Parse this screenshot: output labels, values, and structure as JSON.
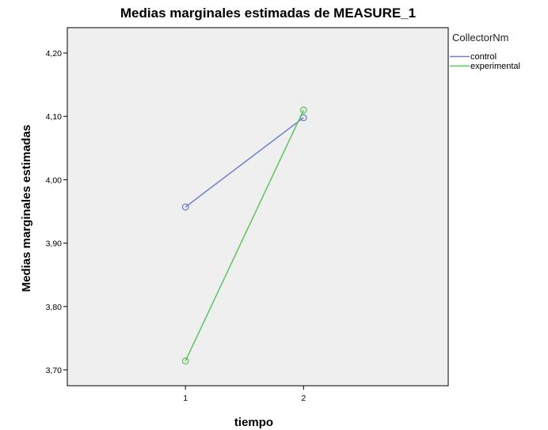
{
  "chart_data": {
    "type": "line",
    "title": "Medias marginales estimadas de MEASURE_1",
    "xlabel": "tiempo",
    "ylabel": "Medias marginales estimadas",
    "categories": [
      "1",
      "2"
    ],
    "ylim": [
      3.675,
      4.24
    ],
    "yticks": [
      3.7,
      3.8,
      3.9,
      4.0,
      4.1,
      4.2
    ],
    "ytick_labels": [
      "3,70",
      "3,80",
      "3,90",
      "4,00",
      "4,10",
      "4,20"
    ],
    "grid": false,
    "legend": {
      "title": "CollectorNm",
      "placement": "right"
    },
    "series": [
      {
        "name": "control",
        "color": "#6f7fc9",
        "values": [
          3.957,
          4.098
        ]
      },
      {
        "name": "experimental",
        "color": "#5ec45e",
        "values": [
          3.714,
          4.11
        ]
      }
    ],
    "plot_background": "#efefef"
  }
}
